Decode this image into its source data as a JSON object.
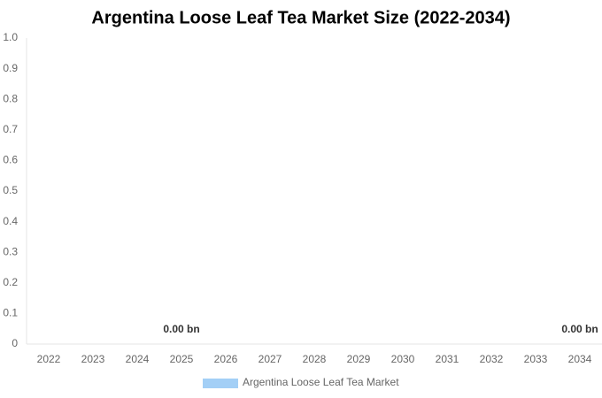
{
  "chart_data": {
    "type": "bar",
    "title": "Argentina Loose Leaf Tea Market Size (2022-2034)",
    "categories": [
      "2022",
      "2023",
      "2024",
      "2025",
      "2026",
      "2027",
      "2028",
      "2029",
      "2030",
      "2031",
      "2032",
      "2033",
      "2034"
    ],
    "series": [
      {
        "name": "Argentina Loose Leaf Tea Market",
        "color": "#a3cff6",
        "values": [
          0,
          0,
          0,
          0,
          0,
          0,
          0,
          0,
          0,
          0,
          0,
          0,
          0
        ],
        "value_labels": [
          null,
          null,
          null,
          "0.00 bn",
          null,
          null,
          null,
          null,
          null,
          null,
          null,
          null,
          "0.00 bn"
        ]
      }
    ],
    "ylim": [
      0,
      1
    ],
    "yticks": [
      0,
      0.1,
      0.2,
      0.3,
      0.4,
      0.5,
      0.6,
      0.7,
      0.8,
      0.9,
      {
        "value": 1,
        "label": "1.0"
      }
    ],
    "grid": false,
    "legend": "bottom"
  }
}
